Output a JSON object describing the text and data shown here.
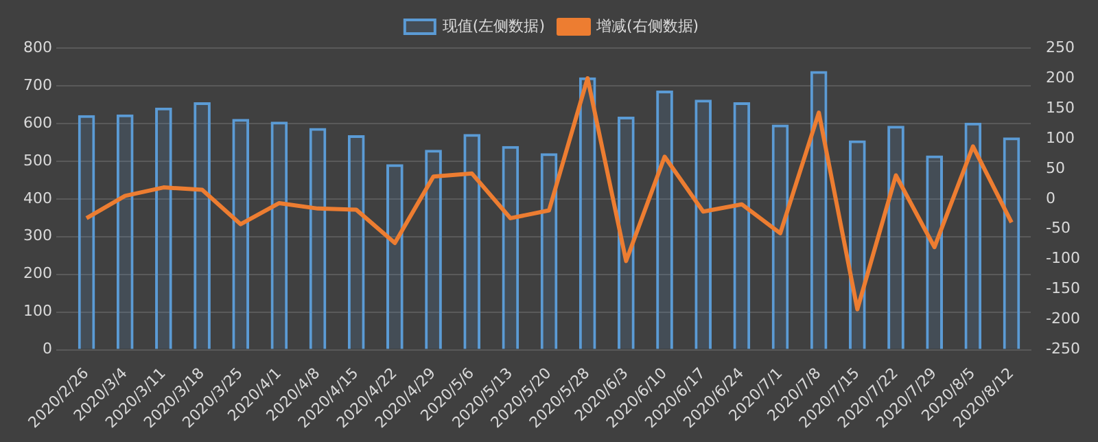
{
  "chart_data": {
    "type": "bar",
    "categories": [
      "2020/2/26",
      "2020/3/4",
      "2020/3/11",
      "2020/3/18",
      "2020/3/25",
      "2020/4/1",
      "2020/4/8",
      "2020/4/15",
      "2020/4/22",
      "2020/4/29",
      "2020/5/6",
      "2020/5/13",
      "2020/5/20",
      "2020/5/28",
      "2020/6/3",
      "2020/6/10",
      "2020/6/17",
      "2020/6/24",
      "2020/7/1",
      "2020/7/8",
      "2020/7/15",
      "2020/7/22",
      "2020/7/29",
      "2020/8/5",
      "2020/8/12"
    ],
    "series": [
      {
        "name": "现值(左侧数据)",
        "color": "#5b9bd5",
        "values": [
          622,
          624,
          642,
          656,
          612,
          605,
          588,
          569,
          492,
          530,
          572,
          540,
          521,
          722,
          618,
          687,
          663,
          656,
          597,
          739,
          555,
          594,
          515,
          602,
          563
        ]
      },
      {
        "name": "增减(右侧数据)",
        "type": "line",
        "axis": "y2",
        "color": "#ed7d31",
        "values": [
          -32,
          5,
          19,
          15,
          -42,
          -7,
          -16,
          -18,
          -73,
          37,
          42,
          -32,
          -19,
          200,
          -103,
          70,
          -21,
          -9,
          -57,
          143,
          -183,
          39,
          -80,
          87,
          -39
        ]
      }
    ],
    "ylim": [
      0,
      800
    ],
    "yticks": [
      0,
      100,
      200,
      300,
      400,
      500,
      600,
      700,
      800
    ],
    "y2lim": [
      -250,
      250
    ],
    "y2ticks": [
      -250,
      -200,
      -150,
      -100,
      -50,
      0,
      50,
      100,
      150,
      200,
      250
    ],
    "grid": "y",
    "legend": "top",
    "marker": "none",
    "line_style": "solid"
  }
}
